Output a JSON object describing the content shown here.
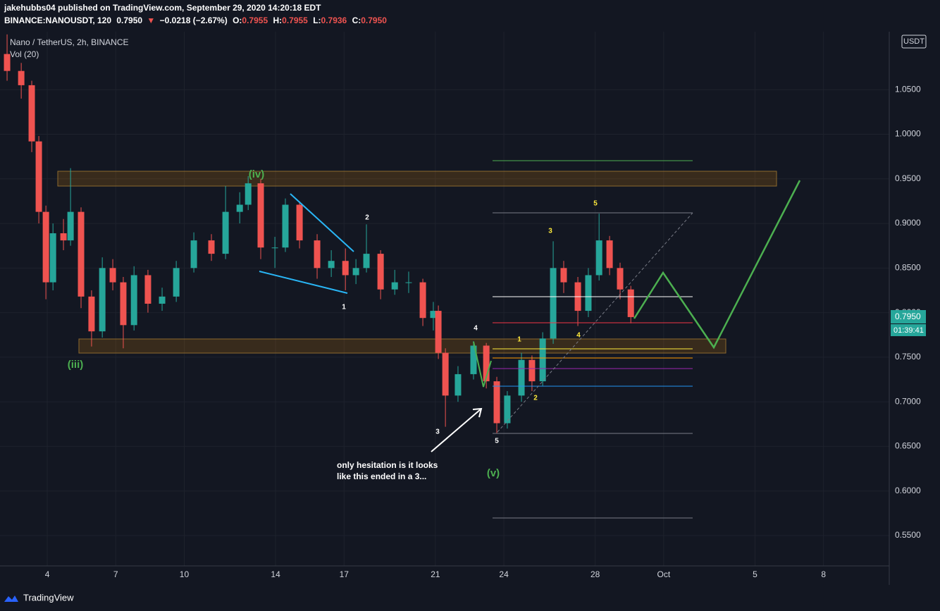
{
  "header": {
    "publisher": "jakehubbs04 published on TradingView.com, September 29, 2020 14:20:18 EDT",
    "symbol": "BINANCE:NANOUSDT, 120",
    "last": "0.7950",
    "arrow": "▼",
    "change": "−0.0218 (−2.67%)",
    "ohlc": [
      {
        "key": "O:",
        "value": "0.7955"
      },
      {
        "key": "H:",
        "value": "0.7955"
      },
      {
        "key": "L:",
        "value": "0.7936"
      },
      {
        "key": "C:",
        "value": "0.7950"
      }
    ]
  },
  "chart_data": {
    "type": "candlestick",
    "title": "Nano / TetherUS, 2h, BINANCE",
    "indicator": "Vol (20)",
    "up_color": "#26a69a",
    "down_color": "#ef5350",
    "grid": true,
    "x": [
      2.24,
      2.86,
      3.32,
      3.63,
      3.94,
      4.25,
      4.71,
      5.02,
      5.48,
      5.94,
      6.41,
      6.87,
      7.33,
      7.8,
      8.41,
      9.03,
      9.65,
      10.42,
      11.19,
      11.81,
      12.43,
      12.8,
      13.35,
      13.97,
      14.43,
      15.05,
      15.82,
      16.44,
      17.06,
      17.52,
      17.98,
      18.6,
      19.22,
      19.83,
      20.45,
      20.91,
      21.13,
      21.44,
      21.99,
      22.67,
      23.23,
      23.69,
      24.15,
      24.77,
      25.23,
      25.7,
      26.16,
      26.62,
      27.24,
      27.7,
      28.17,
      28.63,
      29.09,
      29.56
    ],
    "open": [
      1.09,
      1.071,
      1.055,
      0.992,
      0.913,
      0.834,
      0.889,
      0.881,
      0.913,
      0.818,
      0.779,
      0.85,
      0.834,
      0.786,
      0.842,
      0.81,
      0.818,
      0.85,
      0.881,
      0.866,
      0.913,
      0.921,
      0.945,
      0.873,
      0.873,
      0.921,
      0.881,
      0.85,
      0.858,
      0.842,
      0.85,
      0.866,
      0.826,
      0.834,
      0.834,
      0.794,
      0.802,
      0.755,
      0.707,
      0.731,
      0.763,
      0.723,
      0.676,
      0.707,
      0.747,
      0.723,
      0.771,
      0.85,
      0.834,
      0.802,
      0.842,
      0.881,
      0.85,
      0.826
    ],
    "high": [
      1.112,
      1.08,
      1.06,
      0.998,
      0.92,
      0.9,
      0.905,
      0.962,
      0.918,
      0.825,
      0.862,
      0.86,
      0.84,
      0.852,
      0.848,
      0.828,
      0.858,
      0.89,
      0.888,
      0.942,
      0.935,
      0.953,
      0.95,
      0.885,
      0.928,
      0.925,
      0.888,
      0.87,
      0.872,
      0.86,
      0.899,
      0.87,
      0.848,
      0.846,
      0.838,
      0.812,
      0.808,
      0.76,
      0.74,
      0.768,
      0.766,
      0.728,
      0.712,
      0.755,
      0.752,
      0.778,
      0.88,
      0.858,
      0.84,
      0.85,
      0.911,
      0.886,
      0.856,
      0.83
    ],
    "low": [
      1.06,
      1.04,
      0.98,
      0.9,
      0.815,
      0.825,
      0.87,
      0.875,
      0.805,
      0.762,
      0.772,
      0.825,
      0.76,
      0.78,
      0.8,
      0.802,
      0.812,
      0.845,
      0.858,
      0.86,
      0.9,
      0.915,
      0.86,
      0.85,
      0.868,
      0.872,
      0.838,
      0.84,
      0.825,
      0.832,
      0.845,
      0.815,
      0.82,
      0.822,
      0.785,
      0.78,
      0.748,
      0.672,
      0.7,
      0.725,
      0.715,
      0.665,
      0.67,
      0.7,
      0.712,
      0.718,
      0.765,
      0.822,
      0.785,
      0.795,
      0.836,
      0.842,
      0.815,
      0.788
    ],
    "close": [
      1.071,
      1.055,
      0.992,
      0.913,
      0.834,
      0.889,
      0.881,
      0.913,
      0.818,
      0.779,
      0.85,
      0.834,
      0.786,
      0.842,
      0.81,
      0.818,
      0.85,
      0.881,
      0.866,
      0.913,
      0.921,
      0.945,
      0.873,
      0.873,
      0.921,
      0.881,
      0.85,
      0.858,
      0.842,
      0.85,
      0.866,
      0.826,
      0.834,
      0.834,
      0.794,
      0.802,
      0.755,
      0.707,
      0.731,
      0.763,
      0.723,
      0.676,
      0.707,
      0.747,
      0.723,
      0.771,
      0.85,
      0.834,
      0.802,
      0.842,
      0.881,
      0.85,
      0.826,
      0.795
    ],
    "xlim": [
      1.93,
      40.88
    ],
    "ylim": [
      0.516,
      1.115
    ],
    "xticks": [
      4,
      7,
      10,
      14,
      17,
      21,
      24,
      28,
      {
        "value": 31,
        "label": "Oct"
      },
      {
        "value": 35,
        "label": "5"
      },
      {
        "value": 38,
        "label": "8"
      }
    ],
    "yticks": [
      {
        "value": 1.05,
        "label": "1.0500"
      },
      {
        "value": 1.0,
        "label": "1.0000"
      },
      {
        "value": 0.95,
        "label": "0.9500"
      },
      {
        "value": 0.9,
        "label": "0.9000"
      },
      {
        "value": 0.85,
        "label": "0.8500"
      },
      {
        "value": 0.8,
        "label": "0.8000"
      },
      {
        "value": 0.75,
        "label": "0.7500"
      },
      {
        "value": 0.7,
        "label": "0.7000"
      },
      {
        "value": 0.65,
        "label": "0.6500"
      },
      {
        "value": 0.6,
        "label": "0.6000"
      },
      {
        "value": 0.55,
        "label": "0.5500"
      }
    ],
    "currency": "USDT",
    "price_label": "0.7950",
    "countdown": "01:39:41"
  },
  "annotations": {
    "waves": [
      "(iii)",
      "(iv)",
      "(v)",
      "1",
      "2",
      "3",
      "4",
      "5",
      "1",
      "2",
      "3",
      "4",
      "5"
    ],
    "note": [
      "only hesitation is it looks",
      "like this ended in a 3..."
    ]
  },
  "footer": "TradingView"
}
